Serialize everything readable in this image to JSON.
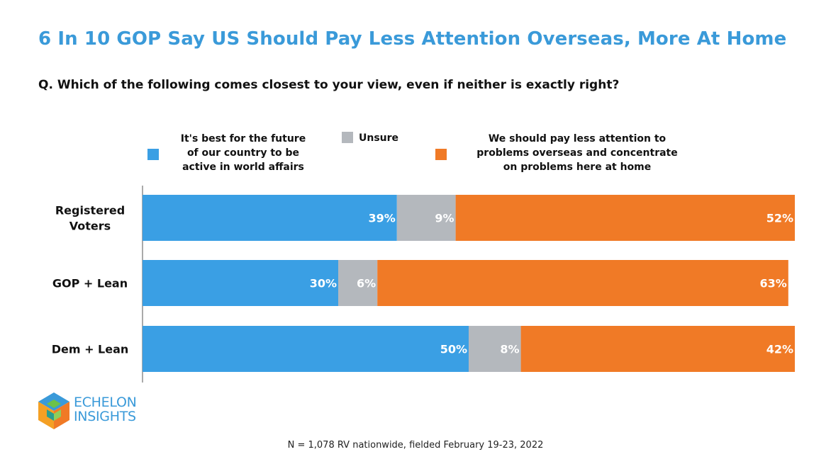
{
  "title": "6 In 10 GOP Say US Should Pay Less Attention Overseas, More At Home",
  "subtitle": "Q. Which of the following comes closest to your view, even if neither is exactly right?",
  "colors": {
    "title": "#3a9ad9",
    "active": "#3a9fe4",
    "unsure": "#b4b8bd",
    "less": "#f07a26"
  },
  "legend": [
    {
      "label": "It's best for the future\nof our country to be\nactive in world affairs",
      "color": "#3a9fe4"
    },
    {
      "label": "Unsure",
      "color": "#b4b8bd"
    },
    {
      "label": "We should pay less attention to\nproblems overseas and concentrate\non problems here at home",
      "color": "#f07a26"
    }
  ],
  "chart_data": {
    "type": "bar",
    "orientation": "horizontal",
    "stacked": true,
    "categories": [
      "Registered\nVoters",
      "GOP + Lean",
      "Dem + Lean"
    ],
    "series": [
      {
        "name": "It's best for the future of our country to be active in world affairs",
        "values": [
          39,
          30,
          50
        ]
      },
      {
        "name": "Unsure",
        "values": [
          9,
          6,
          8
        ]
      },
      {
        "name": "We should pay less attention to problems overseas and concentrate on problems here at home",
        "values": [
          52,
          63,
          42
        ]
      }
    ],
    "value_suffix": "%",
    "xlim": [
      0,
      100
    ],
    "legend_position": "top"
  },
  "logo": {
    "line1": "ECHELON",
    "line2": "INSIGHTS"
  },
  "footnote": "N = 1,078 RV nationwide, fielded February 19-23, 2022"
}
